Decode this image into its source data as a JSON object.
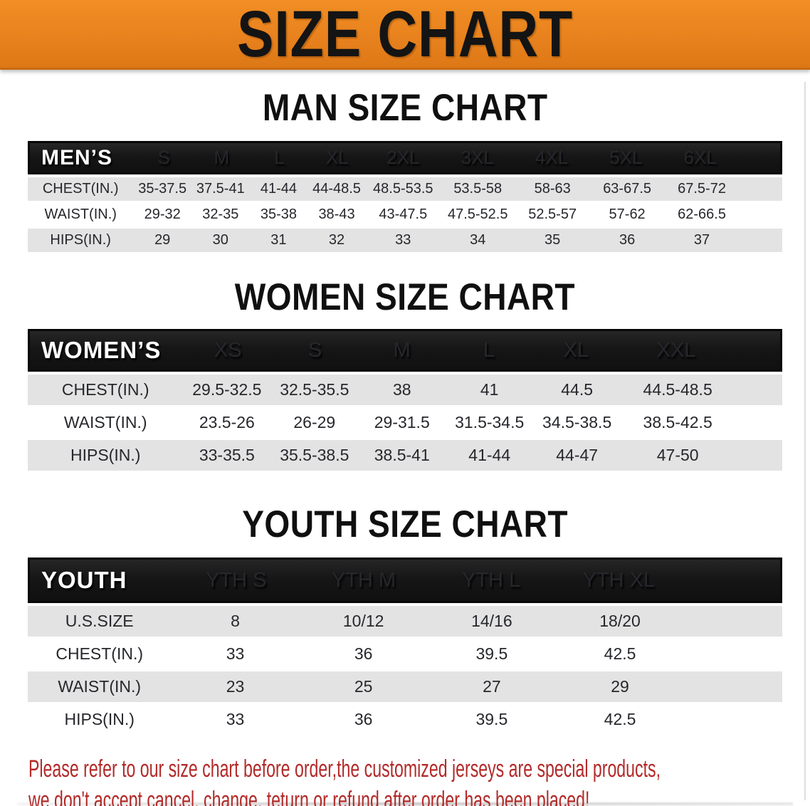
{
  "page": {
    "banner_title": "SIZE CHART",
    "footer_line1": "Please refer to our size chart before order,the customized jerseys are special products,",
    "footer_line2": "we don't accept cancel, change, teturn or refund after order has been placed!"
  },
  "colors": {
    "banner_orange": "#e8821e",
    "header_black": "#161616",
    "row_gray": "#e3e3e3",
    "footer_red": "#b22a29"
  },
  "men": {
    "heading": "MAN SIZE CHART",
    "header": [
      "MEN’S",
      "S",
      "M",
      "L",
      "XL",
      "2XL",
      "3XL",
      "4XL",
      "5XL",
      "6XL"
    ],
    "rows": [
      {
        "label": "CHEST(IN.)",
        "values": [
          "35-37.5",
          "37.5-41",
          "41-44",
          "44-48.5",
          "48.5-53.5",
          "53.5-58",
          "58-63",
          "63-67.5",
          "67.5-72"
        ]
      },
      {
        "label": "WAIST(IN.)",
        "values": [
          "29-32",
          "32-35",
          "35-38",
          "38-43",
          "43-47.5",
          "47.5-52.5",
          "52.5-57",
          "57-62",
          "62-66.5"
        ]
      },
      {
        "label": "HIPS(IN.)",
        "values": [
          "29",
          "30",
          "31",
          "32",
          "33",
          "34",
          "35",
          "36",
          "37"
        ]
      }
    ]
  },
  "women": {
    "heading": "WOMEN SIZE CHART",
    "header": [
      "WOMEN’S",
      "XS",
      "S",
      "M",
      "L",
      "XL",
      "XXL"
    ],
    "rows": [
      {
        "label": "CHEST(IN.)",
        "values": [
          "29.5-32.5",
          "32.5-35.5",
          "38",
          "41",
          "44.5",
          "44.5-48.5"
        ]
      },
      {
        "label": "WAIST(IN.)",
        "values": [
          "23.5-26",
          "26-29",
          "29-31.5",
          "31.5-34.5",
          "34.5-38.5",
          "38.5-42.5"
        ]
      },
      {
        "label": "HIPS(IN.)",
        "values": [
          "33-35.5",
          "35.5-38.5",
          "38.5-41",
          "41-44",
          "44-47",
          "47-50"
        ]
      }
    ]
  },
  "youth": {
    "heading": "YOUTH SIZE CHART",
    "header": [
      "YOUTH",
      "YTH S",
      "YTH M",
      "YTH L",
      "YTH XL"
    ],
    "rows": [
      {
        "label": "U.S.SIZE",
        "values": [
          "8",
          "10/12",
          "14/16",
          "18/20"
        ]
      },
      {
        "label": "CHEST(IN.)",
        "values": [
          "33",
          "36",
          "39.5",
          "42.5"
        ]
      },
      {
        "label": "WAIST(IN.)",
        "values": [
          "23",
          "25",
          "27",
          "29"
        ]
      },
      {
        "label": "HIPS(IN.)",
        "values": [
          "33",
          "36",
          "39.5",
          "42.5"
        ]
      }
    ]
  }
}
